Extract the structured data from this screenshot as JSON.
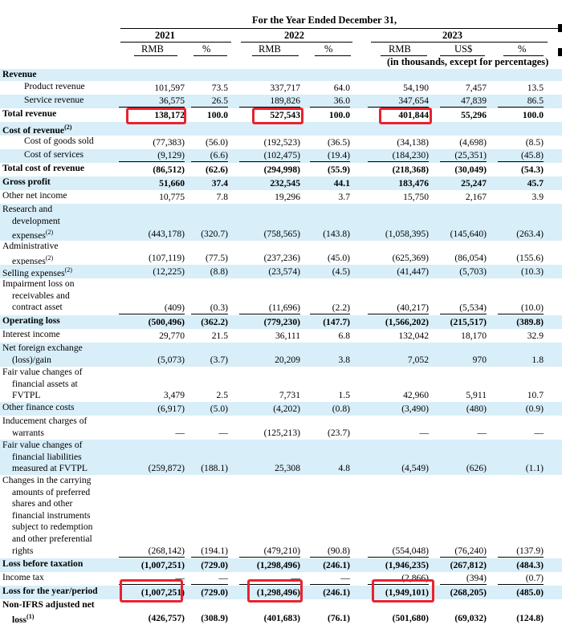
{
  "header": {
    "period_title": "For the Year Ended December 31,",
    "years": [
      "2021",
      "2022",
      "2023"
    ],
    "currency_headers": [
      "RMB",
      "%",
      "RMB",
      "%",
      "RMB",
      "US$",
      "%"
    ],
    "units_note": "(in thousands, except for percentages)"
  },
  "colors": {
    "highlight": "#e8232f",
    "shade": "#d8eef8"
  },
  "rows": [
    {
      "label": [
        "Revenue"
      ],
      "bold": true,
      "shade": true,
      "values": []
    },
    {
      "label": [
        "Product revenue"
      ],
      "indent": true,
      "values": [
        "101,597",
        "73.5",
        "337,717",
        "64.0",
        "54,190",
        "7,457",
        "13.5"
      ]
    },
    {
      "label": [
        "Service revenue"
      ],
      "indent": true,
      "shade": true,
      "underline": true,
      "values": [
        "36,575",
        "26.5",
        "189,826",
        "36.0",
        "347,654",
        "47,839",
        "86.5"
      ]
    },
    {
      "label": [
        "Total revenue"
      ],
      "bold": true,
      "values": [
        "138,172",
        "100.0",
        "527,543",
        "100.0",
        "401,844",
        "55,296",
        "100.0"
      ]
    },
    {
      "label": [
        "Cost of revenue"
      ],
      "sup": "(2)",
      "bold": true,
      "shade": true,
      "values": []
    },
    {
      "label": [
        "Cost of goods sold"
      ],
      "indent": true,
      "values": [
        "(77,383)",
        "(56.0)",
        "(192,523)",
        "(36.5)",
        "(34,138)",
        "(4,698)",
        "(8.5)"
      ]
    },
    {
      "label": [
        "Cost of services"
      ],
      "indent": true,
      "shade": true,
      "underline": true,
      "values": [
        "(9,129)",
        "(6.6)",
        "(102,475)",
        "(19.4)",
        "(184,230)",
        "(25,351)",
        "(45.8)"
      ]
    },
    {
      "label": [
        "Total cost of revenue"
      ],
      "bold": true,
      "values": [
        "(86,512)",
        "(62.6)",
        "(294,998)",
        "(55.9)",
        "(218,368)",
        "(30,049)",
        "(54.3)"
      ]
    },
    {
      "label": [
        "Gross profit"
      ],
      "bold": true,
      "shade": true,
      "values": [
        "51,660",
        "37.4",
        "232,545",
        "44.1",
        "183,476",
        "25,247",
        "45.7"
      ]
    },
    {
      "label": [
        "Other net income"
      ],
      "values": [
        "10,775",
        "7.8",
        "19,296",
        "3.7",
        "15,750",
        "2,167",
        "3.9"
      ]
    },
    {
      "label": [
        "Research and",
        "development",
        "expenses"
      ],
      "sup": "(2)",
      "shade": true,
      "values": [
        "(443,178)",
        "(320.7)",
        "(758,565)",
        "(143.8)",
        "(1,058,395)",
        "(145,640)",
        "(263.4)"
      ]
    },
    {
      "label": [
        "Administrative",
        "expenses"
      ],
      "sup": "(2)",
      "values": [
        "(107,119)",
        "(77.5)",
        "(237,236)",
        "(45.0)",
        "(625,369)",
        "(86,054)",
        "(155.6)"
      ]
    },
    {
      "label": [
        "Selling expenses"
      ],
      "sup": "(2)",
      "shade": true,
      "values": [
        "(12,225)",
        "(8.8)",
        "(23,574)",
        "(4.5)",
        "(41,447)",
        "(5,703)",
        "(10.3)"
      ]
    },
    {
      "label": [
        "Impairment loss on",
        "receivables and",
        "contract asset"
      ],
      "underline": true,
      "values": [
        "(409)",
        "(0.3)",
        "(11,696)",
        "(2.2)",
        "(40,217)",
        "(5,534)",
        "(10.0)"
      ]
    },
    {
      "label": [
        "Operating loss"
      ],
      "bold": true,
      "shade": true,
      "values": [
        "(500,496)",
        "(362.2)",
        "(779,230)",
        "(147.7)",
        "(1,566,202)",
        "(215,517)",
        "(389.8)"
      ]
    },
    {
      "label": [
        "Interest income"
      ],
      "values": [
        "29,770",
        "21.5",
        "36,111",
        "6.8",
        "132,042",
        "18,170",
        "32.9"
      ]
    },
    {
      "label": [
        "Net foreign exchange",
        "(loss)/gain"
      ],
      "shade": true,
      "values": [
        "(5,073)",
        "(3.7)",
        "20,209",
        "3.8",
        "7,052",
        "970",
        "1.8"
      ]
    },
    {
      "label": [
        "Fair value changes of",
        "financial assets at",
        "FVTPL"
      ],
      "values": [
        "3,479",
        "2.5",
        "7,731",
        "1.5",
        "42,960",
        "5,911",
        "10.7"
      ]
    },
    {
      "label": [
        "Other finance costs"
      ],
      "shade": true,
      "values": [
        "(6,917)",
        "(5.0)",
        "(4,202)",
        "(0.8)",
        "(3,490)",
        "(480)",
        "(0.9)"
      ]
    },
    {
      "label": [
        "Inducement charges of",
        "warrants"
      ],
      "values": [
        "—",
        "—",
        "(125,213)",
        "(23.7)",
        "—",
        "—",
        "—"
      ]
    },
    {
      "label": [
        "Fair value changes of",
        "financial liabilities",
        "measured at FVTPL"
      ],
      "shade": true,
      "values": [
        "(259,872)",
        "(188.1)",
        "25,308",
        "4.8",
        "(4,549)",
        "(626)",
        "(1.1)"
      ]
    },
    {
      "label": [
        "Changes in the carrying",
        "amounts of preferred",
        "shares and other",
        "financial instruments",
        "subject to redemption",
        "and other preferential",
        "rights"
      ],
      "underline": true,
      "values": [
        "(268,142)",
        "(194.1)",
        "(479,210)",
        "(90.8)",
        "(554,048)",
        "(76,240)",
        "(137.9)"
      ]
    },
    {
      "label": [
        "Loss before taxation"
      ],
      "bold": true,
      "shade": true,
      "values": [
        "(1,007,251)",
        "(729.0)",
        "(1,298,496)",
        "(246.1)",
        "(1,946,235)",
        "(267,812)",
        "(484.3)"
      ]
    },
    {
      "label": [
        "Income tax"
      ],
      "underline": true,
      "values": [
        "—",
        "—",
        "—",
        "—",
        "(2,866)",
        "(394)",
        "(0.7)"
      ]
    },
    {
      "label": [
        "Loss for the year/period"
      ],
      "bold": true,
      "shade": true,
      "values": [
        "(1,007,251)",
        "(729.0)",
        "(1,298,496)",
        "(246.1)",
        "(1,949,101)",
        "(268,205)",
        "(485.0)"
      ]
    },
    {
      "label": [
        "Non-IFRS adjusted net",
        "loss"
      ],
      "sup": "(1)",
      "bold": true,
      "values": [
        "(426,757)",
        "(308.9)",
        "(401,683)",
        "(76.1)",
        "(501,680)",
        "(69,032)",
        "(124.8)"
      ]
    }
  ]
}
